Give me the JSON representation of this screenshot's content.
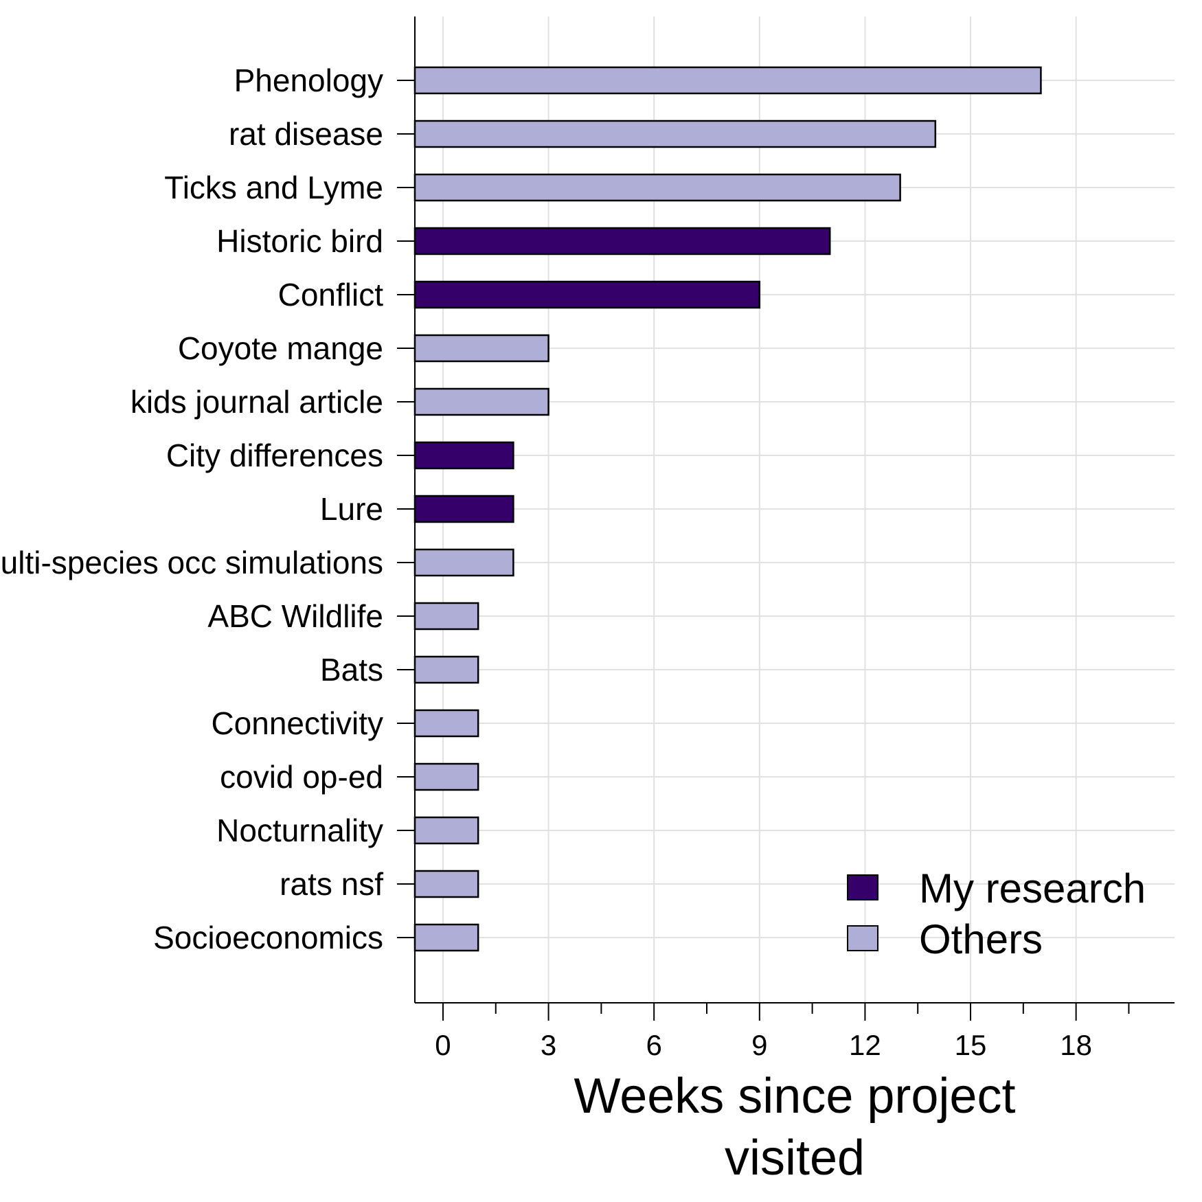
{
  "chart_data": {
    "type": "bar",
    "orientation": "horizontal",
    "categories": [
      "Phenology",
      "rat disease",
      "Ticks and Lyme",
      "Historic bird",
      "Conflict",
      "Coyote mange",
      "kids journal article",
      "City differences",
      "Lure",
      "Multi-species occ simulations",
      "ABC Wildlife",
      "Bats",
      "Connectivity",
      "covid op-ed",
      "Nocturnality",
      "rats nsf",
      "Socioeconomics"
    ],
    "values": [
      17,
      14,
      13,
      11,
      9,
      3,
      3,
      2,
      2,
      2,
      1,
      1,
      1,
      1,
      1,
      1,
      1
    ],
    "groups": [
      "Others",
      "Others",
      "Others",
      "My research",
      "My research",
      "Others",
      "Others",
      "My research",
      "My research",
      "Others",
      "Others",
      "Others",
      "Others",
      "Others",
      "Others",
      "Others",
      "Others"
    ],
    "legend": [
      {
        "name": "My research",
        "color": "#35006a"
      },
      {
        "name": "Others",
        "color": "#aeaed6"
      }
    ],
    "legend_position": "bottom-right",
    "xlabel_lines": [
      "Weeks since project",
      "visited"
    ],
    "xlim": [
      -0.8,
      20.8
    ],
    "xticks": [
      0,
      3,
      6,
      9,
      12,
      15,
      18
    ],
    "xminor_ticks": [
      1.5,
      4.5,
      7.5,
      10.5,
      13.5,
      16.5,
      19.5
    ],
    "grid": true,
    "colors": {
      "grid": "#e1e1e1",
      "axis": "#000000",
      "bar_outline": "#000000"
    }
  }
}
